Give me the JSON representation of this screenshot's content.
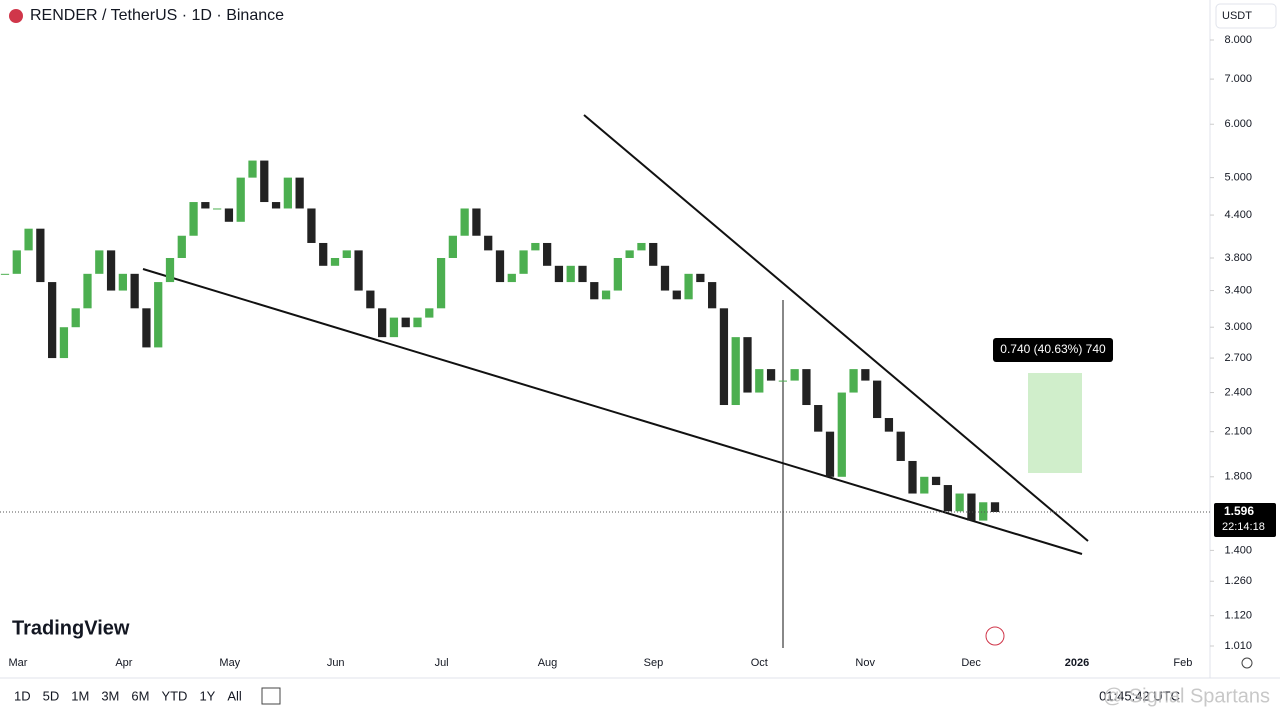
{
  "header": {
    "title": "RENDER / TetherUS · 1D · Binance",
    "currency": "USDT"
  },
  "chart_data": {
    "type": "candlestick",
    "log_scale": true,
    "ylim": [
      1.01,
      8.0
    ],
    "yticks": [
      {
        "value": 8.0,
        "label": "8.000"
      },
      {
        "value": 7.0,
        "label": "7.000"
      },
      {
        "value": 6.0,
        "label": "6.000"
      },
      {
        "value": 5.0,
        "label": "5.000"
      },
      {
        "value": 4.4,
        "label": "4.400"
      },
      {
        "value": 3.8,
        "label": "3.800"
      },
      {
        "value": 3.4,
        "label": "3.400"
      },
      {
        "value": 3.0,
        "label": "3.000"
      },
      {
        "value": 2.7,
        "label": "2.700"
      },
      {
        "value": 2.4,
        "label": "2.400"
      },
      {
        "value": 2.1,
        "label": "2.100"
      },
      {
        "value": 1.8,
        "label": "1.800"
      },
      {
        "value": 1.4,
        "label": "1.400"
      },
      {
        "value": 1.26,
        "label": "1.260"
      },
      {
        "value": 1.12,
        "label": "1.120"
      },
      {
        "value": 1.01,
        "label": "1.010"
      }
    ],
    "categories": [
      "Mar",
      "Apr",
      "May",
      "Jun",
      "Jul",
      "Aug",
      "Sep",
      "Oct",
      "Nov",
      "Dec",
      "2026",
      "Feb"
    ],
    "up_color": "#4caf50",
    "down_color": "#222222",
    "closes": [
      3.6,
      3.9,
      4.2,
      3.5,
      2.7,
      3.0,
      3.2,
      3.6,
      3.9,
      3.4,
      3.6,
      3.2,
      2.8,
      3.5,
      3.8,
      4.1,
      4.6,
      4.5,
      4.5,
      4.3,
      5.0,
      5.3,
      4.6,
      4.5,
      5.0,
      4.5,
      4.0,
      3.7,
      3.8,
      3.9,
      3.4,
      3.2,
      2.9,
      3.1,
      3.0,
      3.1,
      3.2,
      3.8,
      4.1,
      4.5,
      4.1,
      3.9,
      3.5,
      3.6,
      3.9,
      4.0,
      3.7,
      3.5,
      3.7,
      3.5,
      3.3,
      3.4,
      3.8,
      3.9,
      4.0,
      3.7,
      3.4,
      3.3,
      3.6,
      3.5,
      3.2,
      2.3,
      2.9,
      2.4,
      2.6,
      2.5,
      2.5,
      2.6,
      2.3,
      2.1,
      1.8,
      2.4,
      2.6,
      2.5,
      2.2,
      2.1,
      1.9,
      1.7,
      1.8,
      1.75,
      1.6,
      1.7,
      1.55,
      1.65,
      1.596
    ],
    "last_price": {
      "value": 1.596,
      "label": "1.596",
      "countdown": "22:14:18"
    },
    "measure_label": "0.740 (40.63%) 740"
  },
  "logo": "TradingView",
  "timeframes": [
    "1D",
    "5D",
    "1M",
    "3M",
    "6M",
    "YTD",
    "1Y",
    "All"
  ],
  "clock": "01:45:42 UTC",
  "watermark": "@ Signal Spartans"
}
